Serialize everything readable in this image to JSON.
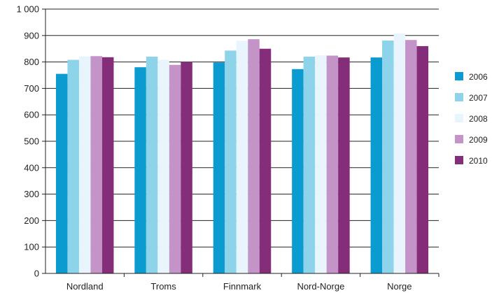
{
  "chart_data": {
    "type": "bar",
    "categories": [
      "Nordland",
      "Troms",
      "Finnmark",
      "Nord-Norge",
      "Norge"
    ],
    "series": [
      {
        "name": "2006",
        "color": "#0a9bd0",
        "values": [
          755,
          780,
          798,
          773,
          817
        ]
      },
      {
        "name": "2007",
        "color": "#8dd3ea",
        "values": [
          808,
          820,
          843,
          820,
          881
        ]
      },
      {
        "name": "2008",
        "color": "#e8f5fc",
        "values": [
          821,
          808,
          880,
          825,
          908
        ]
      },
      {
        "name": "2009",
        "color": "#c493c8",
        "values": [
          822,
          789,
          886,
          824,
          883
        ]
      },
      {
        "name": "2010",
        "color": "#842d79",
        "values": [
          818,
          800,
          850,
          817,
          860
        ]
      }
    ],
    "ylim": [
      0,
      1000
    ],
    "yticks": [
      0,
      100,
      200,
      300,
      400,
      500,
      600,
      700,
      800,
      900,
      1000
    ],
    "ytick_labels": [
      "0",
      "100",
      "200",
      "300",
      "400",
      "500",
      "600",
      "700",
      "800",
      "900",
      "1 000"
    ],
    "grid": true,
    "legend_position": "right"
  }
}
